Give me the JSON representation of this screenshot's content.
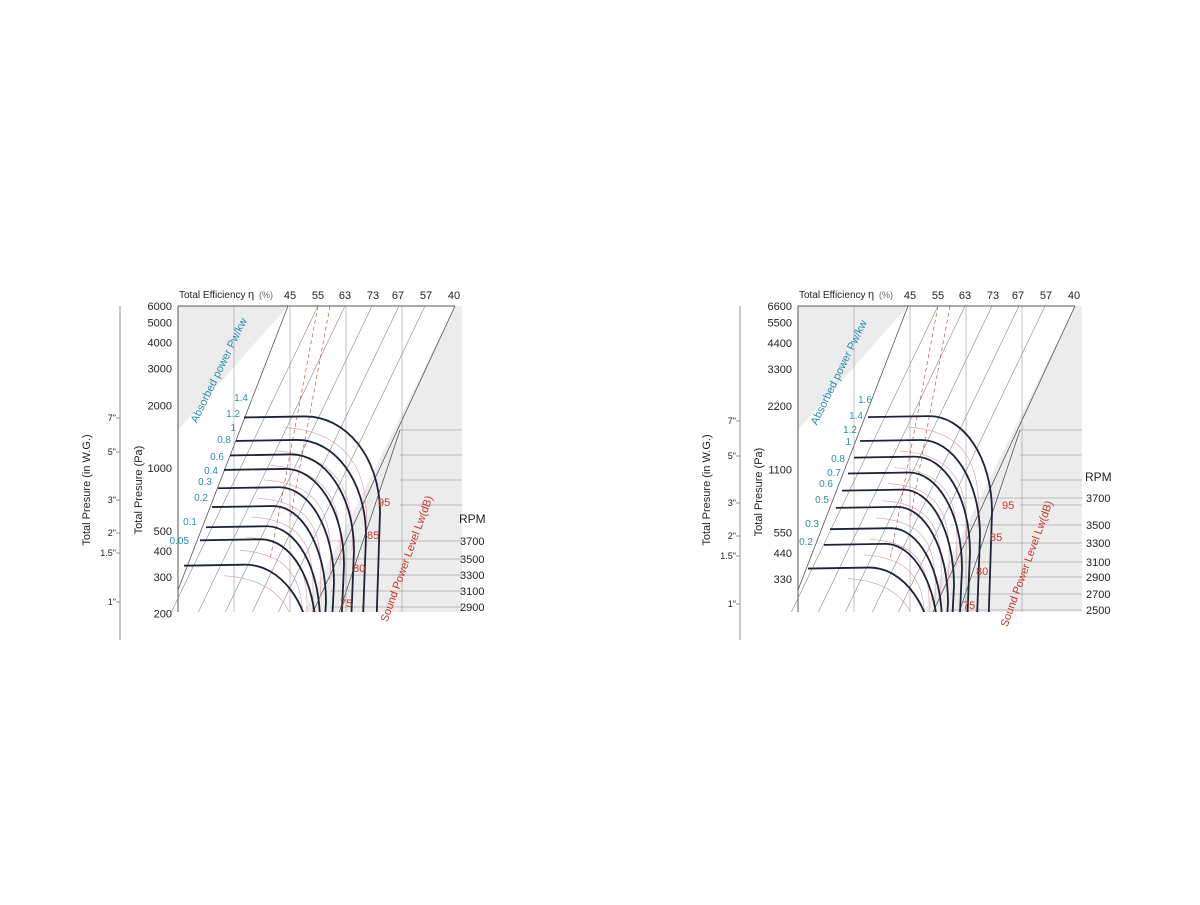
{
  "chart_data": [
    {
      "type": "line",
      "header_label": "Total Efficiency",
      "eta_symbol": "η",
      "eta_unit": "(%)",
      "efficiency_ticks": [
        "45",
        "55",
        "63",
        "73",
        "67",
        "57",
        "40"
      ],
      "ylabel_pa": "Total Presure (Pa)",
      "ylabel_wg": "Total Presure (in W.G.)",
      "pa_ticks": [
        {
          "label": "6000",
          "value": 6000
        },
        {
          "label": "5000",
          "value": 5000
        },
        {
          "label": "4000",
          "value": 4000
        },
        {
          "label": "3000",
          "value": 3000
        },
        {
          "label": "2000",
          "value": 2000
        },
        {
          "label": "1000",
          "value": 1000
        },
        {
          "label": "500",
          "value": 500
        },
        {
          "label": "400",
          "value": 400
        },
        {
          "label": "300",
          "value": 300
        },
        {
          "label": "200",
          "value": 200
        }
      ],
      "wg_ticks": [
        {
          "label": "7\"",
          "value": 7
        },
        {
          "label": "5\"",
          "value": 5
        },
        {
          "label": "3\"",
          "value": 3
        },
        {
          "label": "2\"",
          "value": 2
        },
        {
          "label": "1.5\"",
          "value": 1.5
        },
        {
          "label": "1\"",
          "value": 1
        }
      ],
      "power_axis_label": "Absorbed power Pw/kw",
      "power_ticks": [
        {
          "label": "1.4",
          "value": 1.4
        },
        {
          "label": "1.2",
          "value": 1.2
        },
        {
          "label": "1",
          "value": 1.0
        },
        {
          "label": "0.8",
          "value": 0.8
        },
        {
          "label": "0.6",
          "value": 0.6
        },
        {
          "label": "0.4",
          "value": 0.4
        },
        {
          "label": "0.3",
          "value": 0.3
        },
        {
          "label": "0.2",
          "value": 0.2
        },
        {
          "label": "0.1",
          "value": 0.1
        },
        {
          "label": "0.05",
          "value": 0.05
        }
      ],
      "sound_axis_label": "Sound Power Level Lw(dB)",
      "sound_ticks": [
        "95",
        "85",
        "80",
        "75"
      ],
      "rpm_label": "RPM",
      "rpm_ticks": [
        "3700",
        "3500",
        "3300",
        "3100",
        "2900"
      ],
      "curve_pressures_pa": [
        1750,
        1350,
        1150,
        980,
        800,
        650,
        520,
        450,
        340
      ]
    },
    {
      "type": "line",
      "header_label": "Total Efficiency",
      "eta_symbol": "η",
      "eta_unit": "(%)",
      "efficiency_ticks": [
        "45",
        "55",
        "63",
        "73",
        "67",
        "57",
        "40"
      ],
      "ylabel_pa": "Total Presure (Pa)",
      "ylabel_wg": "Total Presure (in W.G.)",
      "pa_ticks": [
        {
          "label": "6600",
          "value": 6600
        },
        {
          "label": "5500",
          "value": 5500
        },
        {
          "label": "4400",
          "value": 4400
        },
        {
          "label": "3300",
          "value": 3300
        },
        {
          "label": "2200",
          "value": 2200
        },
        {
          "label": "1100",
          "value": 1100
        },
        {
          "label": "550",
          "value": 550
        },
        {
          "label": "440",
          "value": 440
        },
        {
          "label": "330",
          "value": 330
        }
      ],
      "wg_ticks": [
        {
          "label": "7\"",
          "value": 7
        },
        {
          "label": "5\"",
          "value": 5
        },
        {
          "label": "3\"",
          "value": 3
        },
        {
          "label": "2\"",
          "value": 2
        },
        {
          "label": "1.5\"",
          "value": 1.5
        },
        {
          "label": "1\"",
          "value": 1
        }
      ],
      "power_axis_label": "Absorbed power Pw/kw",
      "power_ticks": [
        {
          "label": "1.6",
          "value": 1.6
        },
        {
          "label": "1.4",
          "value": 1.4
        },
        {
          "label": "1.2",
          "value": 1.2
        },
        {
          "label": "1",
          "value": 1.0
        },
        {
          "label": "0.8",
          "value": 0.8
        },
        {
          "label": "0.7",
          "value": 0.7
        },
        {
          "label": "0.6",
          "value": 0.6
        },
        {
          "label": "0.5",
          "value": 0.5
        },
        {
          "label": "0.3",
          "value": 0.3
        },
        {
          "label": "0.2",
          "value": 0.2
        }
      ],
      "sound_axis_label": "Sound Power Level Lw(dB)",
      "sound_ticks": [
        "95",
        "85",
        "80",
        "75"
      ],
      "rpm_label": "RPM",
      "rpm_ticks": [
        "3700",
        "3500",
        "3300",
        "3100",
        "2900",
        "2700",
        "2500"
      ],
      "curve_pressures_pa": [
        1950,
        1500,
        1250,
        1050,
        870,
        720,
        570,
        480,
        370
      ]
    }
  ]
}
